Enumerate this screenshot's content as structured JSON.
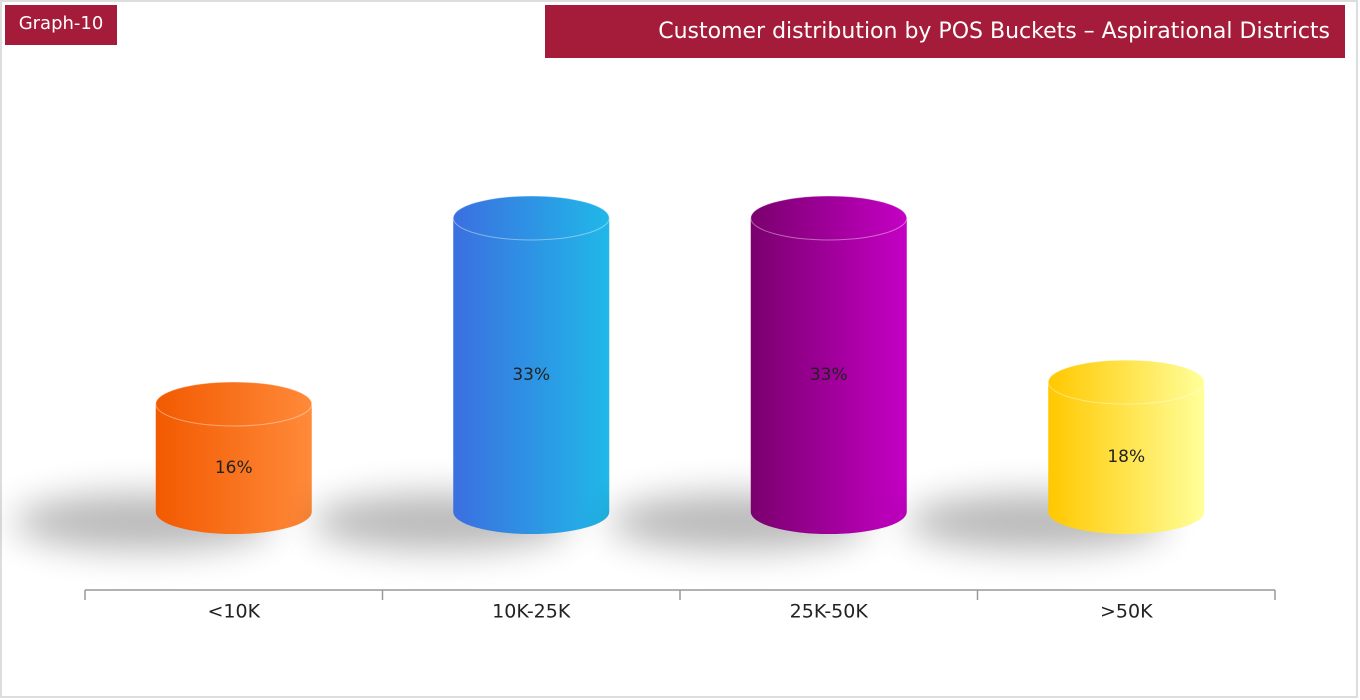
{
  "chart_data": {
    "type": "cylinder",
    "badge": "Graph-10",
    "title": "Customer distribution by POS Buckets  – Aspirational Districts",
    "categories": [
      "<10K",
      "10K-25K",
      "25K-50K",
      ">50K"
    ],
    "values": [
      16,
      33,
      33,
      18
    ],
    "value_labels": [
      "16%",
      "33%",
      "33%",
      "18%"
    ],
    "colors": [
      "#f25a00",
      "#3b6fe0",
      "#7a006e",
      "#ffc800"
    ],
    "highlights": [
      "#ff8a3a",
      "#20b8e8",
      "#c400c4",
      "#ffff9a"
    ]
  }
}
